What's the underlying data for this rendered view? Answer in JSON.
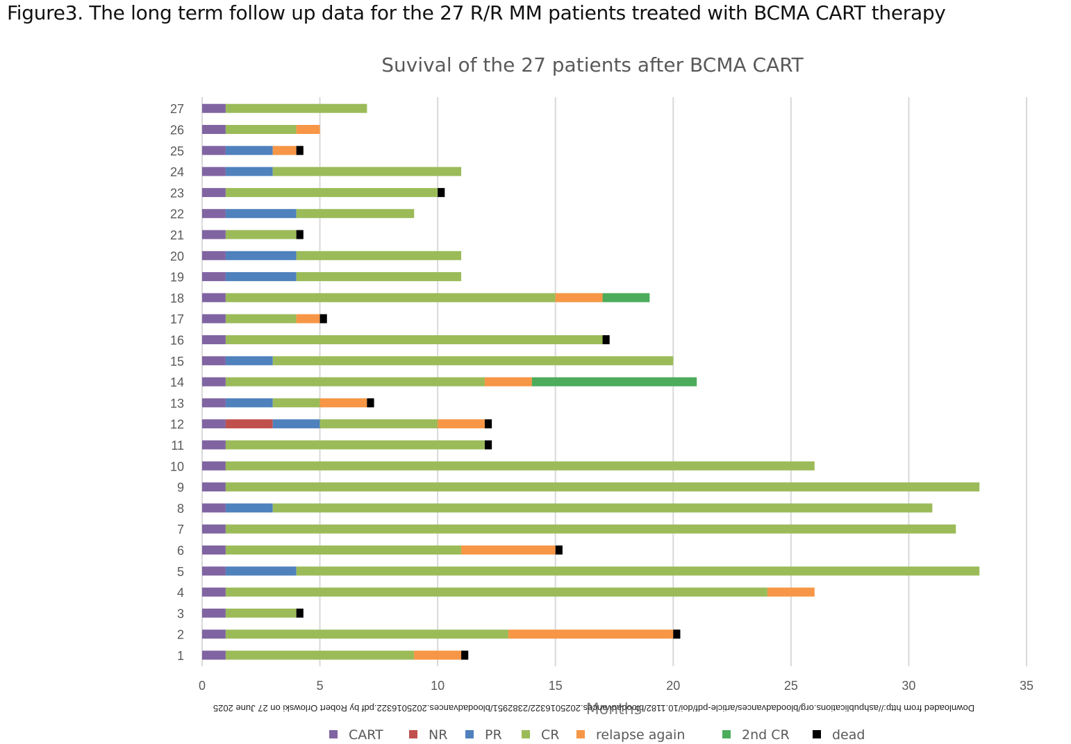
{
  "figure_caption": "Figure3. The long term follow up data for the 27 R/R MM patients treated with BCMA CART therapy",
  "watermark": "Downloaded from http://ashpublications.org/bloodadvances/article-pdf/doi/10.1182/bloodadvances.2025016322/2382951/bloodadvances.2025016322.pdf by Robert Orlowski on 27 June 2025",
  "chart_data": {
    "type": "bar",
    "orientation": "horizontal",
    "stacked": true,
    "title": "Suvival of the 27 patients after BCMA CART",
    "xlabel": "Months",
    "ylabel": "",
    "xlim": [
      0,
      35
    ],
    "xticks": [
      "0",
      "5",
      "10",
      "15",
      "20",
      "25",
      "30",
      "35"
    ],
    "grid": "vertical",
    "legend_position": "bottom",
    "categories": [
      "1",
      "2",
      "3",
      "4",
      "5",
      "6",
      "7",
      "8",
      "9",
      "10",
      "11",
      "12",
      "13",
      "14",
      "15",
      "16",
      "17",
      "18",
      "19",
      "20",
      "21",
      "22",
      "23",
      "24",
      "25",
      "26",
      "27"
    ],
    "series": [
      {
        "name": "CART",
        "color": "#8064a2",
        "values": [
          1,
          1,
          1,
          1,
          1,
          1,
          1,
          1,
          1,
          1,
          1,
          1,
          1,
          1,
          1,
          1,
          1,
          1,
          1,
          1,
          1,
          1,
          1,
          1,
          1,
          1,
          1
        ]
      },
      {
        "name": "NR",
        "color": "#c0504d",
        "values": [
          0,
          0,
          0,
          0,
          0,
          0,
          0,
          0,
          0,
          0,
          0,
          2,
          0,
          0,
          0,
          0,
          0,
          0,
          0,
          0,
          0,
          0,
          0,
          0,
          0,
          0,
          0
        ]
      },
      {
        "name": "PR",
        "color": "#4f81bd",
        "values": [
          0,
          0,
          0,
          0,
          3,
          0,
          0,
          2,
          0,
          0,
          0,
          2,
          2,
          0,
          2,
          0,
          0,
          0,
          3,
          3,
          0,
          3,
          0,
          2,
          2,
          0,
          0
        ]
      },
      {
        "name": "CR",
        "color": "#9bbb59",
        "values": [
          8,
          12,
          3,
          23,
          29,
          10,
          31,
          28,
          32,
          25,
          11,
          5,
          2,
          11,
          17,
          16,
          3,
          14,
          7,
          7,
          3,
          5,
          9,
          8,
          0,
          3,
          6
        ]
      },
      {
        "name": "relapse again",
        "color": "#f79646",
        "values": [
          2,
          7,
          0,
          2,
          0,
          4,
          0,
          0,
          0,
          0,
          0,
          2,
          2,
          2,
          0,
          0,
          1,
          2,
          0,
          0,
          0,
          0,
          0,
          0,
          1,
          1,
          0
        ]
      },
      {
        "name": "2nd CR",
        "color": "#4cac5c",
        "values": [
          0,
          0,
          0,
          0,
          0,
          0,
          0,
          0,
          0,
          0,
          0,
          0,
          0,
          7,
          0,
          0,
          0,
          2,
          0,
          0,
          0,
          0,
          0,
          0,
          0,
          0,
          0
        ]
      },
      {
        "name": "dead",
        "color": "#000000",
        "values": [
          0.3,
          0.3,
          0.3,
          0,
          0,
          0.3,
          0,
          0,
          0,
          0,
          0.3,
          0.3,
          0.3,
          0,
          0,
          0.3,
          0.3,
          0,
          0,
          0,
          0.3,
          0,
          0.3,
          0,
          0.3,
          0,
          0
        ]
      }
    ]
  }
}
